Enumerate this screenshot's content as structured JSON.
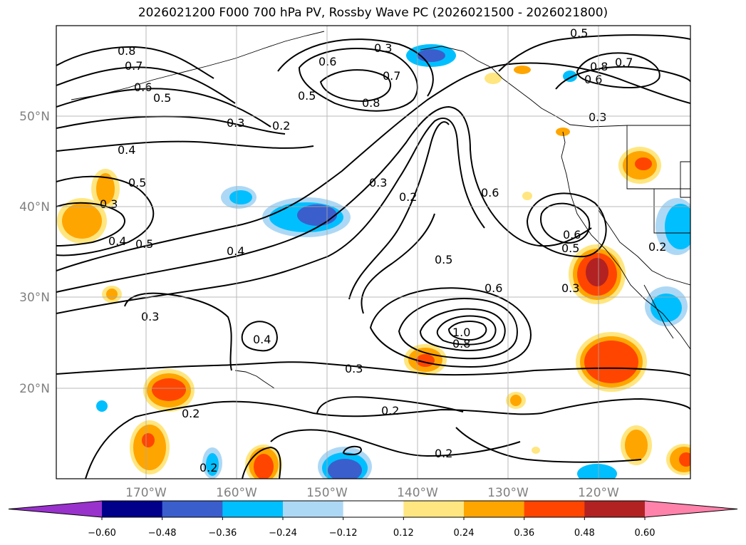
{
  "title": "2026021200 F000 700 hPa PV, Rossby Wave PC (2026021500 - 2026021800)",
  "lat_ticks": [
    "50°N",
    "40°N",
    "30°N",
    "20°N"
  ],
  "lon_ticks": [
    "170°W",
    "160°W",
    "150°W",
    "140°W",
    "130°W",
    "120°W"
  ],
  "colorbar": {
    "tick_labels": [
      "−0.60",
      "−0.48",
      "−0.36",
      "−0.24",
      "−0.12",
      "0.12",
      "0.24",
      "0.36",
      "0.48",
      "0.60"
    ],
    "colors": [
      "#9932cc",
      "#00008b",
      "#3a5fcd",
      "#00bfff",
      "#add8f5",
      "#ffffff",
      "#ffe680",
      "#ffa500",
      "#ff4500",
      "#b22222",
      "#ff82ab"
    ]
  },
  "contour_labels": [
    "0.8",
    "0.7",
    "0.6",
    "0.5",
    "0.3",
    "0.2",
    "0.6",
    "0.5",
    "0.8",
    "0.7",
    "0.3",
    "0.5",
    "0.8",
    "0.7",
    "0.6",
    "0.3",
    "0.4",
    "0.5",
    "0.3",
    "0.4",
    "0.5",
    "0.4",
    "0.3",
    "0.2",
    "0.6",
    "0.6",
    "0.5",
    "0.2",
    "0.5",
    "0.6",
    "0.3",
    "0.3",
    "0.4",
    "1.0",
    "0.8",
    "0.3",
    "0.2",
    "0.2",
    "0.2",
    "0.2"
  ]
}
